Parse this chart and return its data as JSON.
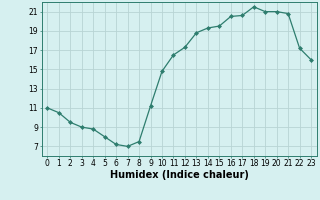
{
  "x": [
    0,
    1,
    2,
    3,
    4,
    5,
    6,
    7,
    8,
    9,
    10,
    11,
    12,
    13,
    14,
    15,
    16,
    17,
    18,
    19,
    20,
    21,
    22,
    23
  ],
  "y": [
    11.0,
    10.5,
    9.5,
    9.0,
    8.8,
    8.0,
    7.2,
    7.0,
    7.5,
    11.2,
    14.8,
    16.5,
    17.3,
    18.8,
    19.3,
    19.5,
    20.5,
    20.6,
    21.5,
    21.0,
    21.0,
    20.8,
    17.2,
    16.0
  ],
  "line_color": "#2e7d6e",
  "marker": "D",
  "marker_size": 2.0,
  "linewidth": 0.9,
  "bg_color": "#d6f0f0",
  "grid_color": "#b8d4d4",
  "xlabel": "Humidex (Indice chaleur)",
  "xlim": [
    -0.5,
    23.5
  ],
  "ylim": [
    6,
    22
  ],
  "xticks": [
    0,
    1,
    2,
    3,
    4,
    5,
    6,
    7,
    8,
    9,
    10,
    11,
    12,
    13,
    14,
    15,
    16,
    17,
    18,
    19,
    20,
    21,
    22,
    23
  ],
  "yticks": [
    7,
    9,
    11,
    13,
    15,
    17,
    19,
    21
  ],
  "tick_fontsize": 5.5,
  "xlabel_fontsize": 7.0
}
